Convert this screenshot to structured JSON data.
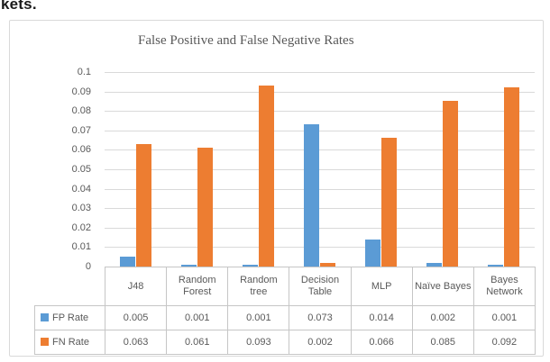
{
  "page": {
    "fragment_text": "kets."
  },
  "chart_data": {
    "type": "bar",
    "title": "False Positive and False Negative Rates",
    "categories": [
      "J48",
      "Random Forest",
      "Random tree",
      "Decision Table",
      "MLP",
      "Naïve Bayes",
      "Bayes Network"
    ],
    "series": [
      {
        "name": "FP Rate",
        "color": "#5B9BD5",
        "values": [
          0.005,
          0.001,
          0.001,
          0.073,
          0.014,
          0.002,
          0.001
        ]
      },
      {
        "name": "FN Rate",
        "color": "#ED7D31",
        "values": [
          0.063,
          0.061,
          0.093,
          0.002,
          0.066,
          0.085,
          0.092
        ]
      }
    ],
    "xlabel": "",
    "ylabel": "",
    "ylim": [
      0,
      0.1
    ],
    "ytick_values": [
      0,
      0.01,
      0.02,
      0.03,
      0.04,
      0.05,
      0.06,
      0.07,
      0.08,
      0.09,
      0.1
    ],
    "ytick_labels": [
      "0",
      "0.01",
      "0.02",
      "0.03",
      "0.04",
      "0.05",
      "0.06",
      "0.07",
      "0.08",
      "0.09",
      "0.1"
    ],
    "grid": true,
    "legend_position": "data-table-row-headers",
    "data_table": true,
    "value_format_decimals": 3,
    "colors": {
      "grid": "#d9d9d9",
      "frame_border": "#d9d9d9",
      "table_border": "#c6c6c6",
      "text": "#595959"
    }
  }
}
